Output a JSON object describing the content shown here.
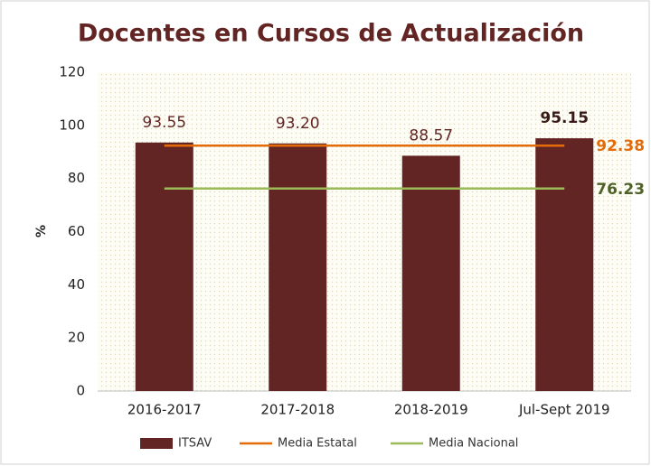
{
  "chart_data": {
    "type": "bar",
    "title": "Docentes en Cursos de Actualización",
    "y_label": "%",
    "categories": [
      "2016-2017",
      "2017-2018",
      "2018-2019",
      "Jul-Sept 2019"
    ],
    "series": [
      {
        "name": "ITSAV",
        "type": "bar",
        "color": "#632523",
        "values": [
          93.55,
          93.2,
          88.57,
          95.15
        ],
        "value_labels": [
          "93.55",
          "93.20",
          "88.57",
          "95.15"
        ]
      },
      {
        "name": "Media Estatal",
        "type": "line",
        "color": "#e36c09",
        "label_color": "#e36c09",
        "values": [
          92.38,
          92.38,
          92.38,
          92.38
        ]
      },
      {
        "name": "Media Nacional",
        "type": "line",
        "color": "#9bbb59",
        "label_color": "#4f6228",
        "values": [
          76.23,
          76.23,
          76.23,
          76.23
        ]
      }
    ],
    "ylim": [
      0,
      120
    ],
    "yticks": [
      0,
      20,
      40,
      60,
      80,
      100,
      120
    ],
    "grid": false,
    "legend": "bottom"
  }
}
